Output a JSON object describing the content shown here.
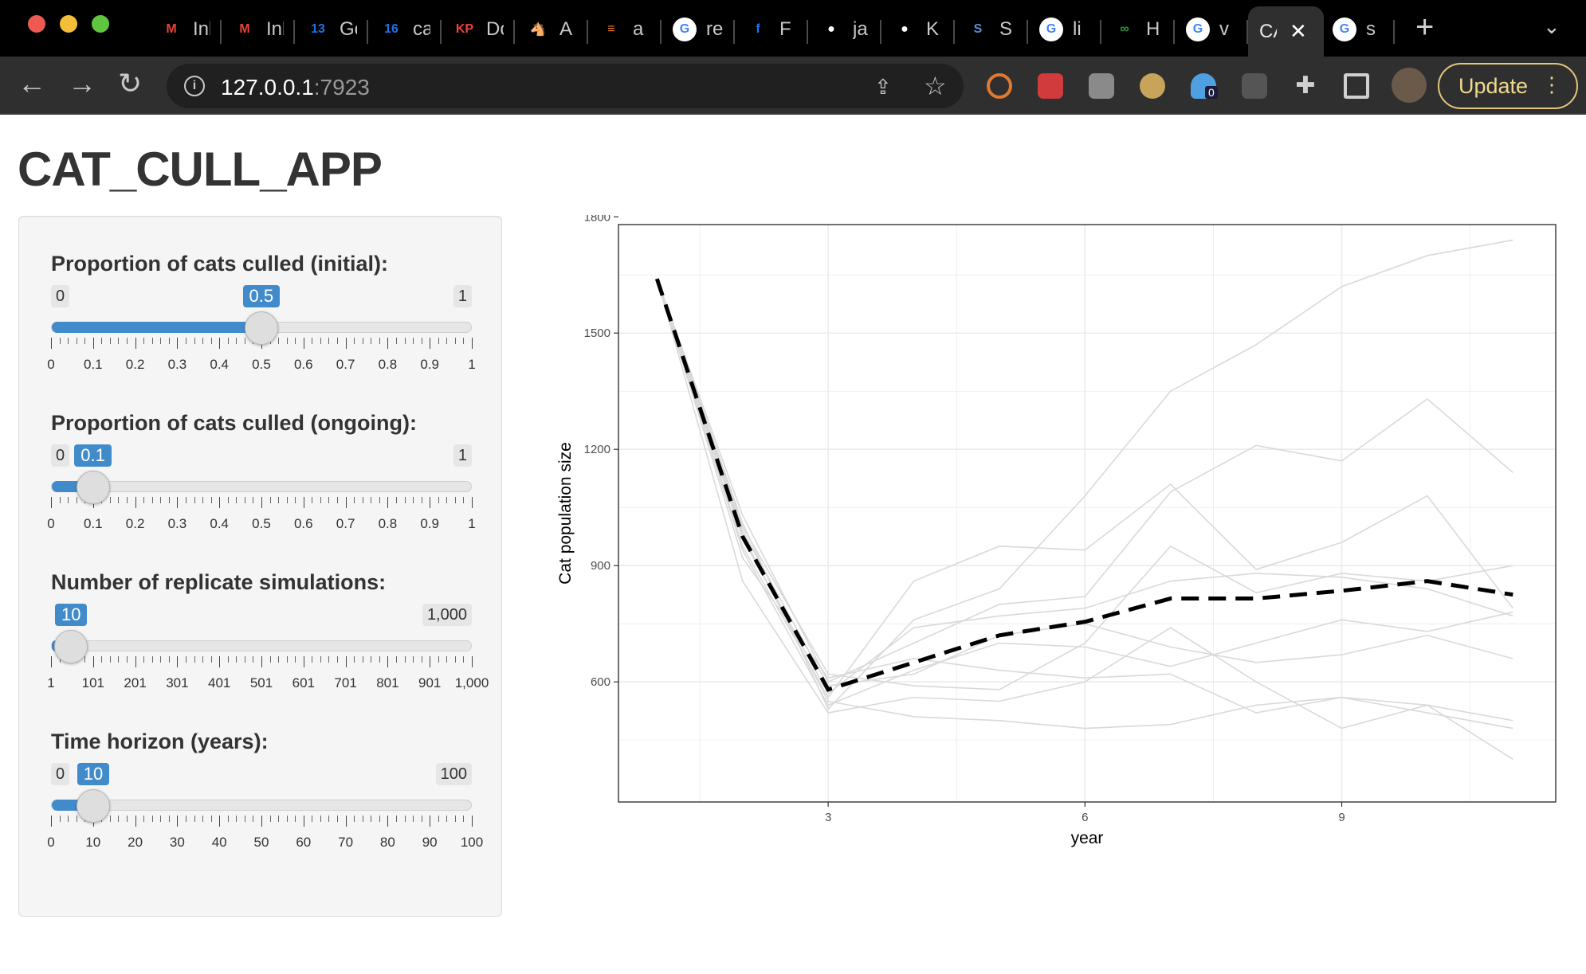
{
  "browser": {
    "tabs": [
      {
        "title": "Inbox",
        "icon": "gmail-icon",
        "glyph": "M",
        "color": "#ea4335"
      },
      {
        "title": "Inbox",
        "icon": "gmail-icon",
        "glyph": "M",
        "color": "#ea4335"
      },
      {
        "title": "Google Calendar",
        "icon": "calendar-icon",
        "glyph": "13",
        "color": "#1a73e8"
      },
      {
        "title": "calendar",
        "icon": "calendar-icon",
        "glyph": "16",
        "color": "#1a73e8"
      },
      {
        "title": "Do",
        "icon": "kp-icon",
        "glyph": "KP",
        "color": "#e8453c"
      },
      {
        "title": "A",
        "icon": "donkey-icon",
        "glyph": "🐴",
        "color": "#555555"
      },
      {
        "title": "a",
        "icon": "stackoverflow-icon",
        "glyph": "≡",
        "color": "#f48024"
      },
      {
        "title": "re",
        "icon": "google-icon",
        "glyph": "G",
        "color": "#4285f4"
      },
      {
        "title": "F",
        "icon": "facebook-icon",
        "glyph": "f",
        "color": "#1877f2"
      },
      {
        "title": "ja",
        "icon": "github-icon",
        "glyph": "●",
        "color": "#ffffff"
      },
      {
        "title": "K",
        "icon": "github-icon",
        "glyph": "●",
        "color": "#ffffff"
      },
      {
        "title": "S",
        "icon": "shiny-icon",
        "glyph": "S",
        "color": "#5a8fd6"
      },
      {
        "title": "li",
        "icon": "google-icon",
        "glyph": "G",
        "color": "#4285f4"
      },
      {
        "title": "H",
        "icon": "infinity-icon",
        "glyph": "∞",
        "color": "#2e9b3f"
      },
      {
        "title": "v",
        "icon": "google-icon",
        "glyph": "G",
        "color": "#4285f4"
      },
      {
        "title": "CA",
        "icon": "",
        "glyph": "",
        "color": "#ffffff"
      },
      {
        "title": "s",
        "icon": "google-icon",
        "glyph": "G",
        "color": "#4285f4"
      }
    ],
    "active_tab_title": "CA",
    "url_host": "127.0.0.1",
    "url_port": ":7923",
    "extension_badge": "0",
    "update_label": "Update"
  },
  "app": {
    "title": "CAT_CULL_APP",
    "sliders": [
      {
        "label": "Proportion of cats culled (initial):",
        "min_label": "0",
        "max_label": "1",
        "value_label": "0.5",
        "fraction": 0.5,
        "ticks": [
          "0",
          "0.1",
          "0.2",
          "0.3",
          "0.4",
          "0.5",
          "0.6",
          "0.7",
          "0.8",
          "0.9",
          "1"
        ]
      },
      {
        "label": "Proportion of cats culled (ongoing):",
        "min_label": "0",
        "max_label": "1",
        "value_label": "0.1",
        "fraction": 0.1,
        "ticks": [
          "0",
          "0.1",
          "0.2",
          "0.3",
          "0.4",
          "0.5",
          "0.6",
          "0.7",
          "0.8",
          "0.9",
          "1"
        ]
      },
      {
        "label": "Number of replicate simulations:",
        "min_label": "",
        "max_label": "1,000",
        "value_label": "10",
        "fraction": 0.009,
        "ticks": [
          "1",
          "101",
          "201",
          "301",
          "401",
          "501",
          "601",
          "701",
          "801",
          "901",
          "1,000"
        ]
      },
      {
        "label": "Time horizon (years):",
        "min_label": "0",
        "max_label": "100",
        "value_label": "10",
        "fraction": 0.1,
        "ticks": [
          "0",
          "10",
          "20",
          "30",
          "40",
          "50",
          "60",
          "70",
          "80",
          "90",
          "100"
        ]
      }
    ]
  },
  "chart_data": {
    "type": "line",
    "title": "",
    "xlabel": "year",
    "ylabel": "Cat population size",
    "xlim": [
      0.55,
      11.5
    ],
    "ylim": [
      290,
      1780
    ],
    "xticks": [
      3,
      6,
      9
    ],
    "yticks": [
      600,
      900,
      1200,
      1500,
      1800
    ],
    "grid": true,
    "replicate_color": "#d9d9d9",
    "mean_color": "#000000",
    "x": [
      1,
      2,
      3,
      4,
      5,
      6,
      7,
      8,
      9,
      10,
      11
    ],
    "series": [
      {
        "values": [
          1640,
          1010,
          530,
          760,
          840,
          1080,
          1350,
          1470,
          1620,
          1700,
          1740
        ]
      },
      {
        "values": [
          1640,
          1030,
          600,
          700,
          800,
          820,
          1090,
          1210,
          1170,
          1330,
          1140
        ]
      },
      {
        "values": [
          1640,
          950,
          560,
          860,
          950,
          940,
          1110,
          890,
          960,
          1080,
          790
        ]
      },
      {
        "values": [
          1640,
          1000,
          620,
          590,
          580,
          700,
          950,
          830,
          880,
          860,
          900
        ]
      },
      {
        "values": [
          1640,
          970,
          570,
          740,
          770,
          790,
          860,
          880,
          870,
          840,
          770
        ]
      },
      {
        "values": [
          1640,
          940,
          540,
          630,
          700,
          690,
          640,
          700,
          760,
          730,
          780
        ]
      },
      {
        "values": [
          1640,
          990,
          590,
          620,
          720,
          750,
          690,
          650,
          670,
          720,
          660
        ]
      },
      {
        "values": [
          1640,
          920,
          610,
          660,
          630,
          610,
          620,
          520,
          560,
          520,
          480
        ]
      },
      {
        "values": [
          1640,
          980,
          550,
          510,
          500,
          480,
          490,
          540,
          560,
          540,
          500
        ]
      },
      {
        "values": [
          1640,
          860,
          520,
          560,
          550,
          600,
          740,
          600,
          480,
          540,
          400
        ]
      }
    ],
    "mean_series": {
      "values": [
        1640,
        975,
        580,
        650,
        720,
        755,
        815,
        815,
        835,
        860,
        825
      ]
    }
  }
}
